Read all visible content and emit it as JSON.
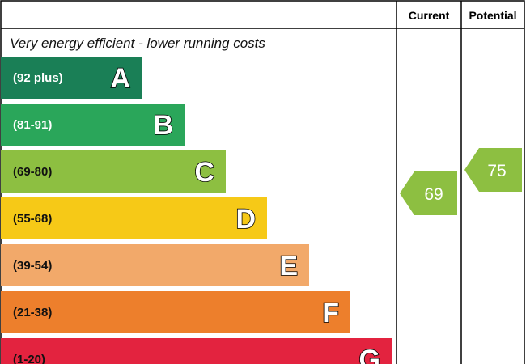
{
  "header": {
    "current": "Current",
    "potential": "Potential"
  },
  "intro": "Very energy efficient - lower running costs",
  "bands": [
    {
      "range": "(92 plus)",
      "letter": "A"
    },
    {
      "range": "(81-91)",
      "letter": "B"
    },
    {
      "range": "(69-80)",
      "letter": "C"
    },
    {
      "range": "(55-68)",
      "letter": "D"
    },
    {
      "range": "(39-54)",
      "letter": "E"
    },
    {
      "range": "(21-38)",
      "letter": "F"
    },
    {
      "range": "(1-20)",
      "letter": "G"
    }
  ],
  "current": "69",
  "potential": "75"
}
